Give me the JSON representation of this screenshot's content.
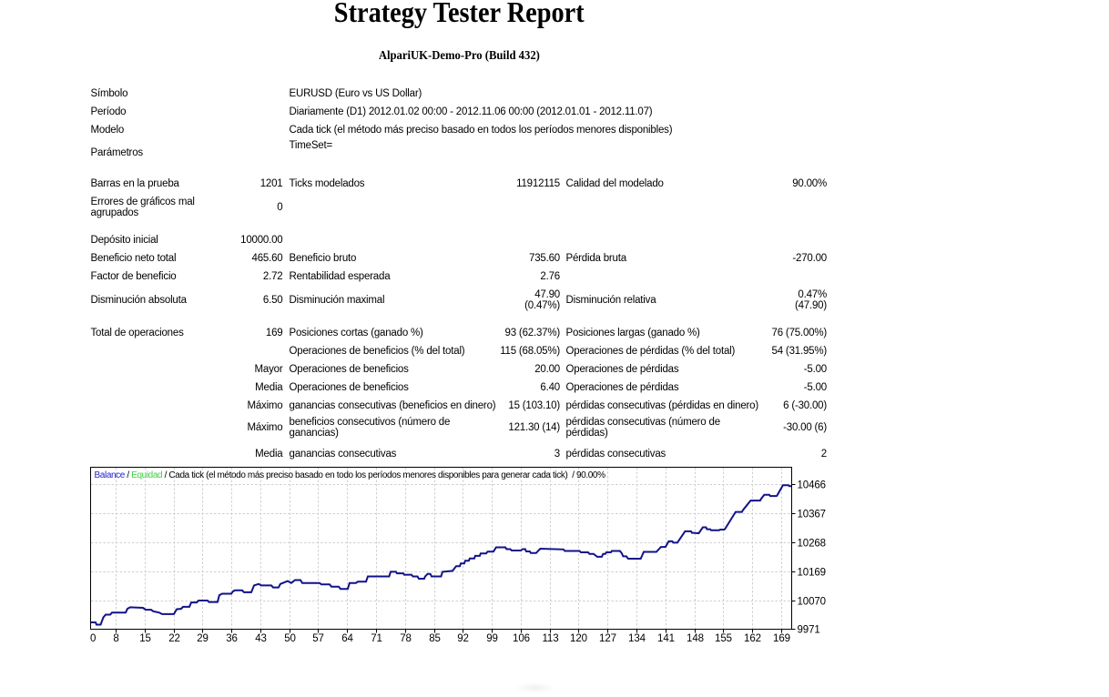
{
  "report": {
    "title": "Strategy Tester Report",
    "subtitle": "AlpariUK-Demo-Pro (Build 432)"
  },
  "stats_table": {
    "rows": [
      {
        "cells": [
          "Símbolo",
          null,
          "EURUSD (Euro vs US Dollar)",
          null,
          null,
          null
        ]
      },
      {
        "cells": [
          "Período",
          null,
          "Diariamente (D1) 2012.01.02 00:00 - 2012.11.06 00:00 (2012.01.01 - 2012.11.07)",
          null,
          null,
          null
        ]
      },
      {
        "cells": [
          "Modelo",
          null,
          "Cada tick (el método más preciso basado en todos los períodos menores disponibles)",
          null,
          null,
          null
        ]
      },
      {
        "cells": [
          "Parámetros",
          null,
          "TimeSet=",
          null,
          null,
          null
        ],
        "top_cols": [
          2
        ]
      },
      {
        "cells": [
          "Barras en la prueba",
          "1201",
          "Ticks modelados",
          "11912115",
          "Calidad del modelado",
          "90.00%"
        ]
      },
      {
        "cells": [
          "Errores de gráficos mal\nagrupados",
          "0",
          null,
          null,
          null,
          null
        ]
      },
      {
        "cells": [
          "Depósito inicial",
          "10000.00",
          null,
          null,
          null,
          null
        ]
      },
      {
        "cells": [
          "Beneficio neto total",
          "465.60",
          "Beneficio bruto",
          "735.60",
          "Pérdida bruta",
          "-270.00"
        ]
      },
      {
        "cells": [
          "Factor de beneficio",
          "2.72",
          "Rentabilidad esperada",
          "2.76",
          null,
          null
        ]
      },
      {
        "cells": [
          "Disminución absoluta",
          "6.50",
          "Disminución maximal",
          "47.90\n(0.47%)",
          "Disminución relativa",
          "0.47%\n(47.90)"
        ]
      },
      {
        "cells": [
          "Total de operaciones",
          "169",
          "Posiciones cortas (ganado %)",
          "93 (62.37%)",
          "Posiciones largas (ganado %)",
          "76 (75.00%)"
        ]
      },
      {
        "cells": [
          null,
          null,
          "Operaciones de beneficios (% del total)",
          "115 (68.05%)",
          "Operaciones de pérdidas (% del total)",
          "54 (31.95%)"
        ]
      },
      {
        "cells": [
          null,
          "Mayor",
          "Operaciones de beneficios",
          "20.00",
          "Operaciones de pérdidas",
          "-5.00"
        ]
      },
      {
        "cells": [
          null,
          "Media",
          "Operaciones de beneficios",
          "6.40",
          "Operaciones de pérdidas",
          "-5.00"
        ]
      },
      {
        "cells": [
          null,
          "Máximo",
          "ganancias consecutivas (beneficios en dinero)",
          "15 (103.10)",
          "pérdidas consecutivas (pérdidas en dinero)",
          "6 (-30.00)"
        ]
      },
      {
        "cells": [
          null,
          "Máximo",
          "beneficios consecutivos (número de\nganancias)",
          "121.30 (14)",
          "pérdidas consecutivas (número de\npérdidas)",
          "-30.00 (6)"
        ]
      },
      {
        "cells": [
          null,
          "Media",
          "ganancias consecutivas",
          "3",
          "pérdidas consecutivas",
          "2"
        ]
      }
    ]
  },
  "chart_data": {
    "type": "line",
    "legend": {
      "balance_label": "Balance",
      "separator": " / ",
      "equity_label": "Equidad",
      "rest": " / Cada tick (el método más preciso basado en todo los períodos menores disponibles para generar cada tick)  / 90.00%"
    },
    "y_ticks": [
      10466,
      10367,
      10268,
      10169,
      10070,
      9971
    ],
    "x_ticks": [
      0,
      8,
      15,
      22,
      29,
      36,
      43,
      50,
      57,
      64,
      71,
      78,
      85,
      92,
      99,
      106,
      113,
      120,
      127,
      134,
      141,
      148,
      155,
      162,
      169
    ],
    "ylim": [
      9971,
      10529
    ],
    "xlim": [
      0,
      169
    ],
    "grid": true,
    "legend_position": "top-left",
    "colors": {
      "balance_line": "#12128a",
      "balance_label": "#2222cc",
      "equity_label": "#3fd03f",
      "grid": "#d0d0d0",
      "axis": "#000000"
    },
    "series": [
      {
        "name": "Balance",
        "points": [
          [
            0.0,
            9994.3
          ],
          [
            0.0071,
            9994.3
          ],
          [
            0.0084,
            9986.5
          ],
          [
            0.0143,
            9986.5
          ],
          [
            0.0182,
            10011.4
          ],
          [
            0.0214,
            10020.7
          ],
          [
            0.0279,
            10020.7
          ],
          [
            0.0305,
            10027.6
          ],
          [
            0.05,
            10027.6
          ],
          [
            0.0526,
            10041.0
          ],
          [
            0.0565,
            10045.9
          ],
          [
            0.0747,
            10044.1
          ],
          [
            0.0786,
            10037.5
          ],
          [
            0.0864,
            10037.5
          ],
          [
            0.0889,
            10032.6
          ],
          [
            0.098,
            10027.6
          ],
          [
            0.1019,
            10022.6
          ],
          [
            0.1188,
            10022.6
          ],
          [
            0.1227,
            10039.1
          ],
          [
            0.1292,
            10041.0
          ],
          [
            0.1318,
            10047.5
          ],
          [
            0.1409,
            10047.5
          ],
          [
            0.1435,
            10062.4
          ],
          [
            0.1513,
            10062.4
          ],
          [
            0.1539,
            10068.9
          ],
          [
            0.1669,
            10068.9
          ],
          [
            0.1688,
            10064.0
          ],
          [
            0.1811,
            10064.0
          ],
          [
            0.1837,
            10087.3
          ],
          [
            0.1876,
            10092.3
          ],
          [
            0.2006,
            10092.3
          ],
          [
            0.2032,
            10100.7
          ],
          [
            0.2058,
            10103.8
          ],
          [
            0.2162,
            10103.8
          ],
          [
            0.2188,
            10097.2
          ],
          [
            0.2292,
            10097.2
          ],
          [
            0.2331,
            10120.6
          ],
          [
            0.2396,
            10125.5
          ],
          [
            0.2435,
            10120.6
          ],
          [
            0.2578,
            10120.6
          ],
          [
            0.2604,
            10113.7
          ],
          [
            0.2681,
            10113.7
          ],
          [
            0.2707,
            10125.5
          ],
          [
            0.2811,
            10135.5
          ],
          [
            0.2863,
            10129.0
          ],
          [
            0.2915,
            10138.9
          ],
          [
            0.2993,
            10138.9
          ],
          [
            0.3019,
            10129.0
          ],
          [
            0.3266,
            10129.0
          ],
          [
            0.3292,
            10124.0
          ],
          [
            0.3409,
            10124.0
          ],
          [
            0.3435,
            10116.2
          ],
          [
            0.3539,
            10116.2
          ],
          [
            0.3564,
            10108.7
          ],
          [
            0.3668,
            10108.7
          ],
          [
            0.3694,
            10128.6
          ],
          [
            0.3785,
            10128.6
          ],
          [
            0.3811,
            10133.6
          ],
          [
            0.3928,
            10133.6
          ],
          [
            0.3954,
            10151.3
          ],
          [
            0.4259,
            10151.3
          ],
          [
            0.4279,
            10167.2
          ],
          [
            0.4357,
            10167.2
          ],
          [
            0.437,
            10161.9
          ],
          [
            0.446,
            10161.9
          ],
          [
            0.4473,
            10157.2
          ],
          [
            0.4577,
            10157.2
          ],
          [
            0.4597,
            10151.3
          ],
          [
            0.4662,
            10151.3
          ],
          [
            0.4681,
            10143.6
          ],
          [
            0.4759,
            10143.6
          ],
          [
            0.4772,
            10151.3
          ],
          [
            0.4807,
            10159.7
          ],
          [
            0.4846,
            10159.7
          ],
          [
            0.4863,
            10151.3
          ],
          [
            0.4999,
            10151.3
          ],
          [
            0.5019,
            10167.2
          ],
          [
            0.5162,
            10170.3
          ],
          [
            0.5214,
            10186.5
          ],
          [
            0.5266,
            10186.5
          ],
          [
            0.5279,
            10195.5
          ],
          [
            0.533,
            10195.5
          ],
          [
            0.5343,
            10204.8
          ],
          [
            0.5395,
            10204.8
          ],
          [
            0.5408,
            10212.6
          ],
          [
            0.5473,
            10212.6
          ],
          [
            0.5486,
            10221.6
          ],
          [
            0.5551,
            10221.6
          ],
          [
            0.5564,
            10230.0
          ],
          [
            0.5642,
            10230.0
          ],
          [
            0.5662,
            10236.2
          ],
          [
            0.5746,
            10236.2
          ],
          [
            0.5785,
            10250.8
          ],
          [
            0.5915,
            10250.8
          ],
          [
            0.5934,
            10244.6
          ],
          [
            0.5986,
            10244.6
          ],
          [
            0.6006,
            10240.0
          ],
          [
            0.6136,
            10240.0
          ],
          [
            0.6162,
            10244.6
          ],
          [
            0.62,
            10244.6
          ],
          [
            0.6213,
            10236.8
          ],
          [
            0.6265,
            10236.8
          ],
          [
            0.6278,
            10231.6
          ],
          [
            0.6356,
            10231.6
          ],
          [
            0.6376,
            10236.8
          ],
          [
            0.6395,
            10241.5
          ],
          [
            0.6415,
            10246.2
          ],
          [
            0.6746,
            10243.7
          ],
          [
            0.6765,
            10238.4
          ],
          [
            0.6973,
            10238.4
          ],
          [
            0.6993,
            10233.7
          ],
          [
            0.7096,
            10233.7
          ],
          [
            0.7116,
            10228.4
          ],
          [
            0.7174,
            10228.4
          ],
          [
            0.7226,
            10218.5
          ],
          [
            0.7291,
            10218.5
          ],
          [
            0.7311,
            10228.4
          ],
          [
            0.7343,
            10228.4
          ],
          [
            0.7356,
            10233.7
          ],
          [
            0.7421,
            10233.7
          ],
          [
            0.7434,
            10238.4
          ],
          [
            0.7551,
            10238.4
          ],
          [
            0.7577,
            10230.0
          ],
          [
            0.7596,
            10220.1
          ],
          [
            0.7642,
            10220.1
          ],
          [
            0.7668,
            10212.0
          ],
          [
            0.7847,
            10212.0
          ],
          [
            0.7889,
            10235.3
          ],
          [
            0.807,
            10235.3
          ],
          [
            0.8135,
            10252.1
          ],
          [
            0.82,
            10252.1
          ],
          [
            0.8246,
            10271.4
          ],
          [
            0.8298,
            10271.4
          ],
          [
            0.8311,
            10266.7
          ],
          [
            0.8369,
            10266.7
          ],
          [
            0.8479,
            10305.6
          ],
          [
            0.8564,
            10305.6
          ],
          [
            0.8577,
            10300.6
          ],
          [
            0.8674,
            10298.7
          ],
          [
            0.8733,
            10319.2
          ],
          [
            0.8778,
            10319.2
          ],
          [
            0.8791,
            10312.7
          ],
          [
            0.8837,
            10312.7
          ],
          [
            0.885,
            10309.3
          ],
          [
            0.8966,
            10309.3
          ],
          [
            0.8979,
            10311.5
          ],
          [
            0.9038,
            10311.5
          ],
          [
            0.9051,
            10314.3
          ],
          [
            0.92,
            10371.8
          ],
          [
            0.9291,
            10371.8
          ],
          [
            0.9304,
            10377.7
          ],
          [
            0.9414,
            10410.7
          ],
          [
            0.9551,
            10410.7
          ],
          [
            0.9564,
            10416.6
          ],
          [
            0.9609,
            10430.2
          ],
          [
            0.9681,
            10430.2
          ],
          [
            0.9694,
            10426.2
          ],
          [
            0.9784,
            10426.2
          ],
          [
            0.9797,
            10430.2
          ],
          [
            0.9875,
            10462.9
          ],
          [
            0.9953,
            10462.9
          ],
          [
            0.9966,
            10459.8
          ],
          [
            0.9999,
            10459.8
          ]
        ]
      }
    ]
  }
}
